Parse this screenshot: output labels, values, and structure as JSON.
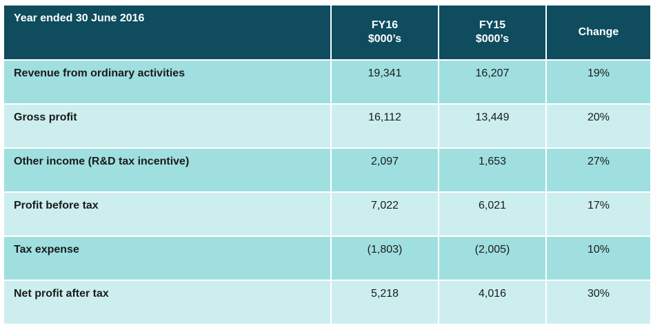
{
  "chart_data": {
    "type": "table",
    "columns": [
      "Year ended 30 June 2016",
      "FY16 $000's",
      "FY15 $000's",
      "Change"
    ],
    "header": {
      "label": "Year ended 30 June 2016",
      "fy16_line1": "FY16",
      "fy16_line2": "$000’s",
      "fy15_line1": "FY15",
      "fy15_line2": "$000’s",
      "change": "Change"
    },
    "rows": [
      {
        "label": "Revenue from ordinary activities",
        "fy16": "19,341",
        "fy15": "16,207",
        "change": "19%"
      },
      {
        "label": "Gross profit",
        "fy16": "16,112",
        "fy15": "13,449",
        "change": "20%"
      },
      {
        "label": "Other income (R&D tax incentive)",
        "fy16": "2,097",
        "fy15": "1,653",
        "change": "27%"
      },
      {
        "label": "Profit before tax",
        "fy16": "7,022",
        "fy15": "6,021",
        "change": "17%"
      },
      {
        "label": "Tax expense",
        "fy16": "(1,803)",
        "fy15": "(2,005)",
        "change": "10%"
      },
      {
        "label": "Net profit after tax",
        "fy16": "5,218",
        "fy15": "4,016",
        "change": "30%"
      }
    ]
  },
  "colors": {
    "header_bg": "#0e4c5e",
    "row_dark": "#a0dfe0",
    "row_light": "#cdeeee"
  }
}
